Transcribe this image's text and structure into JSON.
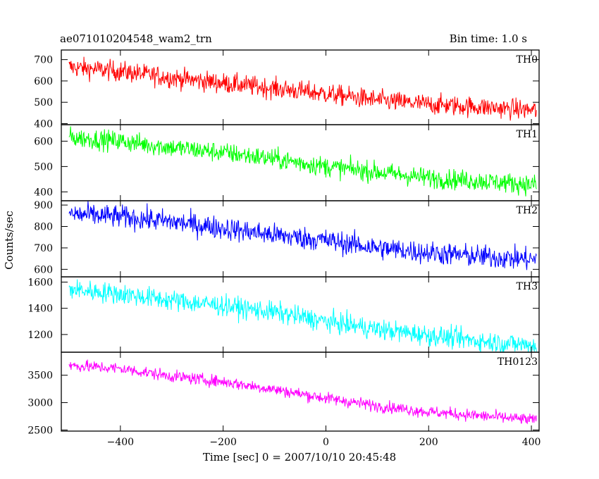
{
  "header": {
    "title": "ae071010204548_wam2_trn",
    "bin_time": "Bin time: 1.0 s"
  },
  "chart_data": {
    "type": "line",
    "xlabel": "Time [sec] 0 = 2007/10/10 20:45:48",
    "ylabel": "Counts/sec",
    "xlim": [
      -515,
      415
    ],
    "x_ticks": [
      -400,
      -200,
      0,
      200,
      400
    ],
    "x_step": 1.0,
    "x_range": [
      -500,
      410
    ],
    "panels": [
      {
        "name": "TH0",
        "color": "#ff0000",
        "ylim": [
          395,
          745
        ],
        "y_ticks": [
          400,
          500,
          600,
          700
        ],
        "trend": [
          [
            -500,
            665
          ],
          [
            -400,
            645
          ],
          [
            -300,
            615
          ],
          [
            -200,
            590
          ],
          [
            -100,
            565
          ],
          [
            0,
            540
          ],
          [
            100,
            510
          ],
          [
            200,
            490
          ],
          [
            300,
            478
          ],
          [
            410,
            462
          ]
        ],
        "noise": 24
      },
      {
        "name": "TH1",
        "color": "#00ff00",
        "ylim": [
          365,
          665
        ],
        "y_ticks": [
          400,
          500,
          600
        ],
        "trend": [
          [
            -500,
            615
          ],
          [
            -400,
            600
          ],
          [
            -300,
            575
          ],
          [
            -200,
            555
          ],
          [
            -100,
            530
          ],
          [
            0,
            500
          ],
          [
            100,
            478
          ],
          [
            200,
            455
          ],
          [
            300,
            443
          ],
          [
            410,
            428
          ]
        ],
        "noise": 20
      },
      {
        "name": "TH2",
        "color": "#0000ff",
        "ylim": [
          565,
          920
        ],
        "y_ticks": [
          600,
          700,
          800,
          900
        ],
        "trend": [
          [
            -500,
            858
          ],
          [
            -400,
            845
          ],
          [
            -300,
            822
          ],
          [
            -200,
            792
          ],
          [
            -100,
            760
          ],
          [
            0,
            735
          ],
          [
            100,
            700
          ],
          [
            200,
            678
          ],
          [
            300,
            660
          ],
          [
            410,
            645
          ]
        ],
        "noise": 27
      },
      {
        "name": "TH3",
        "color": "#00ffff",
        "ylim": [
          1065,
          1640
        ],
        "y_ticks": [
          1200,
          1400,
          1600
        ],
        "trend": [
          [
            -500,
            1545
          ],
          [
            -400,
            1510
          ],
          [
            -300,
            1460
          ],
          [
            -200,
            1420
          ],
          [
            -100,
            1370
          ],
          [
            0,
            1300
          ],
          [
            100,
            1240
          ],
          [
            200,
            1195
          ],
          [
            300,
            1150
          ],
          [
            410,
            1115
          ]
        ],
        "noise": 40
      },
      {
        "name": "TH0123",
        "color": "#ff00ff",
        "ylim": [
          2480,
          3920
        ],
        "y_ticks": [
          2500,
          3000,
          3500
        ],
        "trend": [
          [
            -500,
            3680
          ],
          [
            -400,
            3620
          ],
          [
            -300,
            3480
          ],
          [
            -200,
            3380
          ],
          [
            -100,
            3240
          ],
          [
            0,
            3080
          ],
          [
            100,
            2940
          ],
          [
            200,
            2830
          ],
          [
            300,
            2760
          ],
          [
            410,
            2680
          ]
        ],
        "noise": 55
      }
    ]
  }
}
